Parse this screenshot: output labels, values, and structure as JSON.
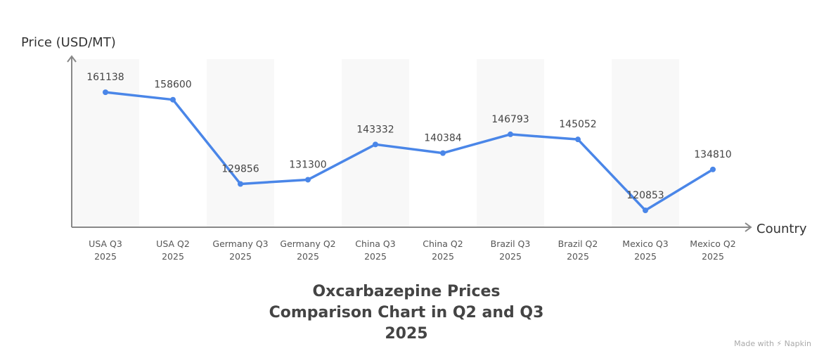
{
  "chart_data": {
    "type": "line",
    "title": "Oxcarbazepine Prices Comparison Chart in Q2 and Q3 2025",
    "xlabel": "Country",
    "ylabel": "Price (USD/MT)",
    "categories": [
      "USA Q3 2025",
      "USA Q2 2025",
      "Germany Q3 2025",
      "Germany Q2 2025",
      "China Q3 2025",
      "China Q2 2025",
      "Brazil Q3 2025",
      "Brazil Q2 2025",
      "Mexico Q3 2025",
      "Mexico Q2 2025"
    ],
    "values": [
      161138,
      158600,
      129856,
      131300,
      143332,
      140384,
      146793,
      145052,
      120853,
      134810
    ],
    "ylim": [
      115100,
      173400
    ],
    "grid": false,
    "alternating_bands": true,
    "line_color": "#4a86e8",
    "band_color": "#f8f8f8"
  },
  "footer": {
    "brand": "Made with ⚡ Napkin"
  }
}
